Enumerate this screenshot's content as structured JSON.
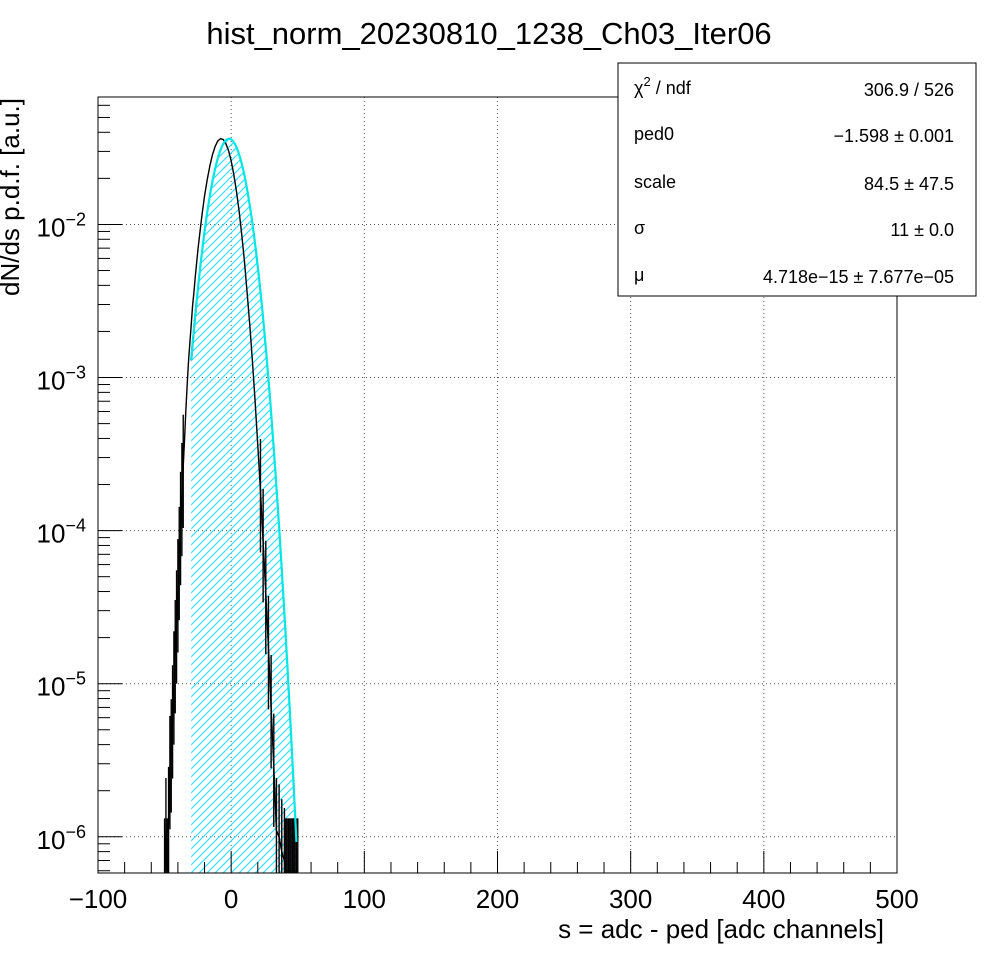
{
  "chart_data": {
    "type": "histogram",
    "title": "hist_norm_20230810_1238_Ch03_Iter06",
    "xlabel": "s = adc - ped [adc channels]",
    "ylabel": "dN/ds p.d.f. [a.u.]",
    "xlim": [
      -100,
      500
    ],
    "ylim": [
      5.8e-07,
      0.068
    ],
    "y_scale": "log",
    "grid": true,
    "x_ticks": [
      {
        "value": -100,
        "label": "−100"
      },
      {
        "value": 0,
        "label": "0"
      },
      {
        "value": 100,
        "label": "100"
      },
      {
        "value": 200,
        "label": "200"
      },
      {
        "value": 300,
        "label": "300"
      },
      {
        "value": 400,
        "label": "400"
      },
      {
        "value": 500,
        "label": "500"
      }
    ],
    "y_ticks": [
      {
        "value": 0.01,
        "base": "10",
        "exp": "−2"
      },
      {
        "value": 0.001,
        "base": "10",
        "exp": "−3"
      },
      {
        "value": 0.0001,
        "base": "10",
        "exp": "−4"
      },
      {
        "value": 1e-05,
        "base": "10",
        "exp": "−5"
      },
      {
        "value": 1e-06,
        "base": "10",
        "exp": "−6"
      }
    ],
    "gaussian": {
      "mean": -1.598,
      "sigma": 11,
      "peak": 0.0363
    },
    "fit_range": [
      -30,
      49
    ],
    "histogram_x": [
      -50,
      -49,
      -48,
      -47,
      -46,
      -45,
      -44,
      -43,
      -42,
      -41,
      -40,
      -39,
      -38,
      -37,
      -36,
      -35,
      -34,
      -33,
      -32,
      -31,
      -30,
      -29,
      -28,
      -27,
      -26,
      -25,
      -24,
      -22,
      -20,
      -18,
      -16,
      -14,
      -12,
      -10,
      -8,
      -6,
      -4,
      -2,
      0,
      2,
      4,
      6,
      8,
      10,
      12,
      14,
      16,
      18,
      20,
      22,
      24,
      26,
      28,
      30,
      32,
      34,
      36,
      38,
      40,
      41,
      42,
      43,
      44,
      45,
      46,
      47,
      48,
      49,
      50
    ],
    "histogram_y": [
      6e-07,
      1.1e-06,
      6e-07,
      1.3e-06,
      2.8e-06,
      3.6e-06,
      6e-06,
      1e-05,
      1.6e-05,
      2.5e-05,
      4e-05,
      6.5e-05,
      0.00011,
      0.00017,
      0.00026,
      0.0004,
      0.00062,
      0.0009,
      0.0013,
      0.0017,
      0.0022,
      0.0029,
      0.0036,
      0.0045,
      0.0055,
      0.0068,
      0.0081,
      0.0114,
      0.0153,
      0.0196,
      0.0242,
      0.0286,
      0.0324,
      0.0351,
      0.0363,
      0.0359,
      0.0338,
      0.0304,
      0.026,
      0.0212,
      0.0164,
      0.0121,
      0.0085,
      0.0057,
      0.0036,
      0.0022,
      0.00126,
      0.0007,
      0.00036,
      0.00018,
      8.5e-05,
      3.9e-05,
      1.7e-05,
      7e-06,
      2.9e-06,
      1.1e-06,
      1e-06,
      8e-07,
      7e-07,
      6e-07,
      6e-07,
      6e-07,
      6e-07,
      6e-07,
      6e-07,
      6e-07,
      6e-07,
      6e-07,
      6e-07
    ],
    "colors": {
      "histogram": "#000000",
      "fit": "#00e5e5",
      "hatch": "#33e0ff",
      "fit_edge": "#cc0000",
      "grid": "#555555"
    }
  },
  "stats": [
    {
      "name_base": "χ",
      "name_sup": "2",
      "name_rest": " / ndf",
      "value": "306.9 / 526"
    },
    {
      "name_base": "ped0",
      "name_sup": "",
      "name_rest": "",
      "value": "−1.598 ± 0.001"
    },
    {
      "name_base": "scale",
      "name_sup": "",
      "name_rest": "",
      "value": "84.5 ± 47.5"
    },
    {
      "name_base": "σ",
      "name_sup": "",
      "name_rest": "",
      "value": "11 ± 0.0"
    },
    {
      "name_base": "μ",
      "name_sup": "",
      "name_rest": "",
      "value": "4.718e−15 ± 7.677e−05"
    }
  ]
}
